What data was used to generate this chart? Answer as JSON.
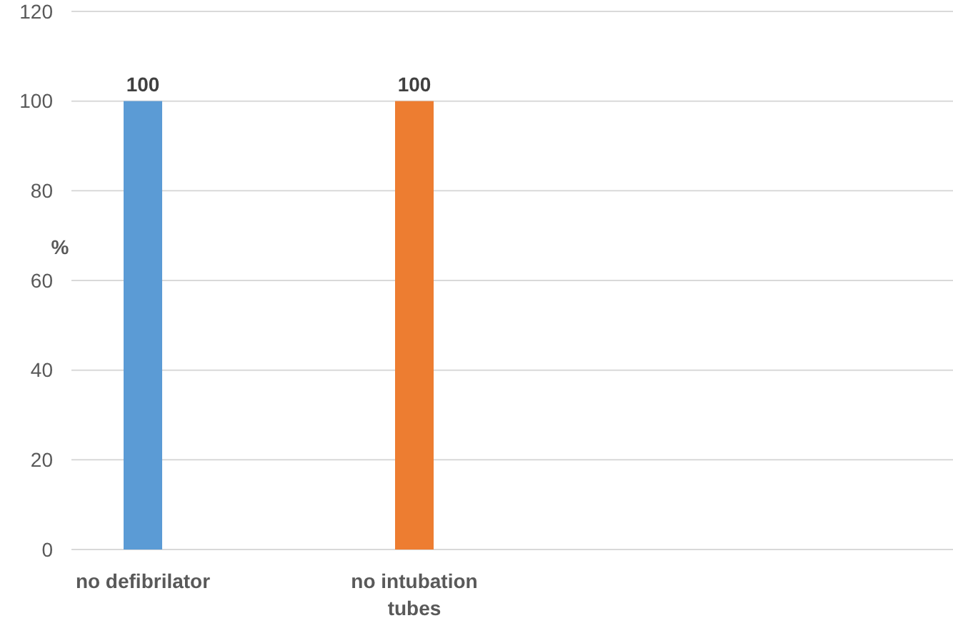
{
  "chart_data": {
    "type": "bar",
    "ylabel": "%",
    "categories": [
      "no defibrilator",
      "no intubation tubes",
      null
    ],
    "values": [
      100,
      100,
      null
    ],
    "colors": [
      "#5b9bd5",
      "#ed7d31",
      null
    ],
    "ylim": [
      0,
      120
    ],
    "yticks": [
      0,
      20,
      40,
      60,
      80,
      100,
      120
    ],
    "grid": "y",
    "data_labels": true
  }
}
